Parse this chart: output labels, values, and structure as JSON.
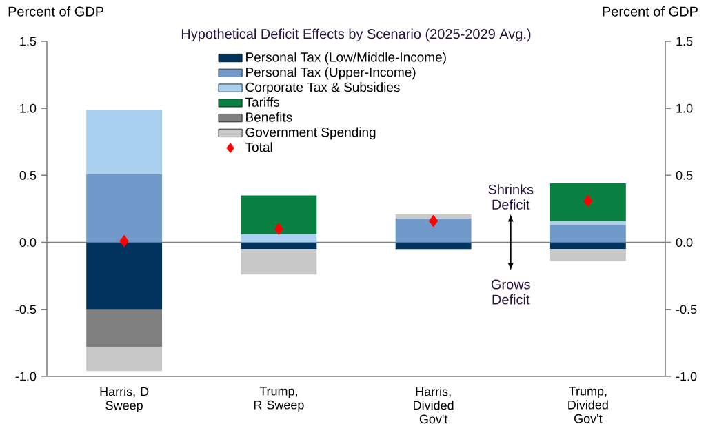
{
  "chart_data": {
    "type": "bar",
    "stacked": true,
    "title": "Hypothetical Deficit Effects by Scenario (2025-2029  Avg.)",
    "ylabel": "Percent of GDP",
    "y2label": "Percent of GDP",
    "categories": [
      "Harris, D Sweep",
      "Trump, R Sweep",
      "Harris, Divided Gov't",
      "Trump, Divided Gov't"
    ],
    "series": [
      {
        "name": "Personal Tax (Low/Middle-Income)",
        "color": "#00335e",
        "values": [
          -0.5,
          -0.05,
          -0.05,
          -0.05
        ]
      },
      {
        "name": "Personal Tax (Upper-Income)",
        "color": "#7098c8",
        "values": [
          0.51,
          null,
          0.18,
          0.13
        ]
      },
      {
        "name": "Corporate Tax & Subsidies",
        "color": "#a9d0ee",
        "values": [
          0.48,
          0.06,
          null,
          0.03
        ]
      },
      {
        "name": "Tariffs",
        "color": "#0b8043",
        "values": [
          null,
          0.29,
          null,
          0.28
        ]
      },
      {
        "name": "Benefits",
        "color": "#808080",
        "values": [
          -0.28,
          null,
          null,
          null
        ]
      },
      {
        "name": "Government Spending",
        "color": "#c8c8c8",
        "values": [
          -0.18,
          -0.19,
          0.03,
          -0.09
        ]
      },
      {
        "name": "Total",
        "type": "scatter",
        "color": "#ff0000",
        "marker": "diamond",
        "values": [
          0.01,
          0.1,
          0.16,
          0.31
        ]
      }
    ],
    "ylim": [
      -1.0,
      1.5
    ],
    "yticks": [
      {
        "value": -1.0,
        "label": "-1.0"
      },
      {
        "value": -0.5,
        "label": "-0.5"
      },
      {
        "value": 0,
        "label": "0.0"
      },
      {
        "value": 0.5,
        "label": "0.5"
      },
      {
        "value": 1.0,
        "label": "1.0"
      },
      {
        "value": 1.5,
        "label": "1.5"
      }
    ],
    "y2lim": [
      -1.0,
      1.5
    ],
    "y2ticks": [
      {
        "value": -1.0,
        "label": "-1.0"
      },
      {
        "value": -0.5,
        "label": "-0.5"
      },
      {
        "value": 0,
        "label": "0.0"
      },
      {
        "value": 0.5,
        "label": "0.5"
      },
      {
        "value": 1.0,
        "label": "1.0"
      },
      {
        "value": 1.5,
        "label": "1.5"
      }
    ],
    "ref_lines": [
      {
        "axis": "y",
        "value": 0,
        "color": "#808080"
      }
    ],
    "legend": "top",
    "annotations": [
      "Shrinks Deficit",
      "Grows Deficit"
    ]
  }
}
